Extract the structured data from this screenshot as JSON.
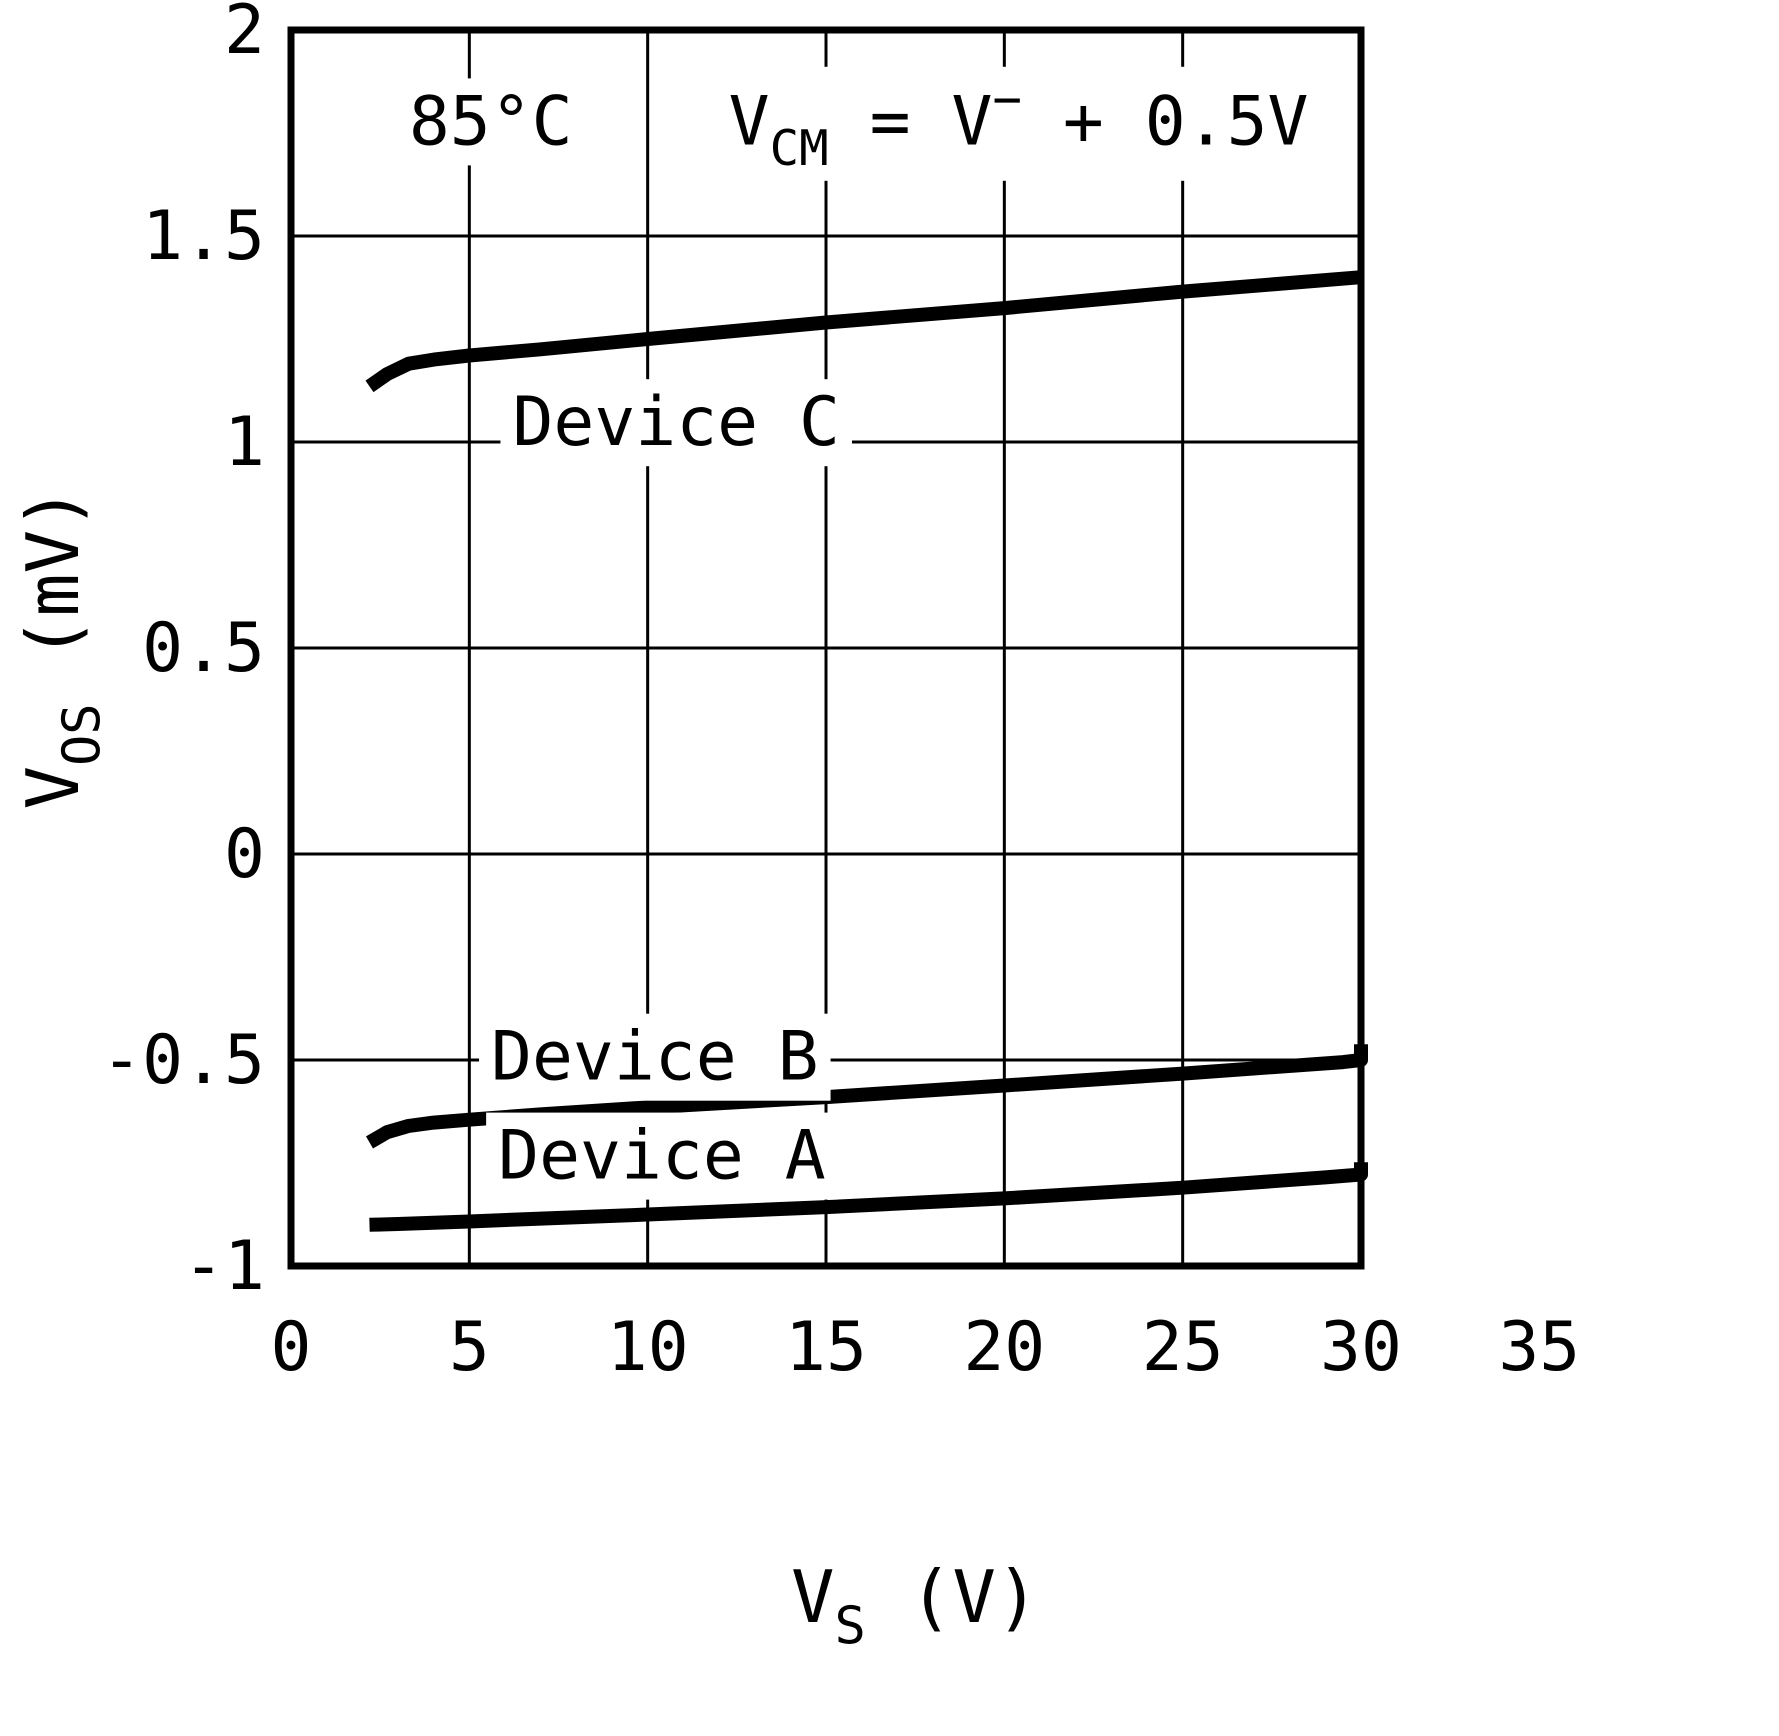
{
  "chart_data": {
    "type": "line",
    "title": "",
    "xlabel": "VS (V)",
    "ylabel": "VOS (mV)",
    "xlabel_parts": [
      {
        "t": "V"
      },
      {
        "t": "S",
        "style": "sub"
      },
      {
        "t": " (V)"
      }
    ],
    "ylabel_parts": [
      {
        "t": "V"
      },
      {
        "t": "OS",
        "style": "sub"
      },
      {
        "t": " (mV)"
      }
    ],
    "xlim": [
      0,
      30
    ],
    "ylim": [
      -1,
      2
    ],
    "x_tick_extension": 35,
    "grid": true,
    "legend_position": "inline-labels",
    "colors": {
      "line": "#000000",
      "background": "#ffffff"
    },
    "x_ticks": [
      {
        "v": 0,
        "label": "0"
      },
      {
        "v": 5,
        "label": "5"
      },
      {
        "v": 10,
        "label": "10"
      },
      {
        "v": 15,
        "label": "15"
      },
      {
        "v": 20,
        "label": "20"
      },
      {
        "v": 25,
        "label": "25"
      },
      {
        "v": 30,
        "label": "30"
      },
      {
        "v": 35,
        "label": "35"
      }
    ],
    "y_ticks": [
      {
        "v": 2,
        "label": "2"
      },
      {
        "v": 1.5,
        "label": "1.5"
      },
      {
        "v": 1,
        "label": "1"
      },
      {
        "v": 0.5,
        "label": "0.5"
      },
      {
        "v": 0,
        "label": "0"
      },
      {
        "v": -0.5,
        "label": "-0.5"
      },
      {
        "v": -1,
        "label": "-1"
      }
    ],
    "x_gridlines": [
      5,
      10,
      15,
      20,
      25
    ],
    "y_gridlines": [
      1.5,
      1,
      0.5,
      0,
      -0.5
    ],
    "annotations": [
      {
        "id": "temp-label",
        "text": "85°C",
        "parts": [
          {
            "t": "85°C"
          }
        ],
        "x": 5.6,
        "y": 1.78,
        "bg": true
      },
      {
        "id": "vcm-label",
        "text": "VCM = V− + 0.5V",
        "parts": [
          {
            "t": "V"
          },
          {
            "t": "CM",
            "style": "sub"
          },
          {
            "t": " = V"
          },
          {
            "t": "−",
            "style": "sup"
          },
          {
            "t": " + 0.5V"
          }
        ],
        "x": 20.4,
        "y": 1.78,
        "bg": true
      },
      {
        "id": "series-label-device-c",
        "text": "Device C",
        "parts": [
          {
            "t": "Device C"
          }
        ],
        "x": 10.8,
        "y": 1.05,
        "bg": true
      },
      {
        "id": "series-label-device-b",
        "text": "Device B",
        "parts": [
          {
            "t": "Device B"
          }
        ],
        "x": 10.2,
        "y": -0.49,
        "bg": true
      },
      {
        "id": "series-label-device-a",
        "text": "Device A",
        "parts": [
          {
            "t": "Device A"
          }
        ],
        "x": 10.4,
        "y": -0.73,
        "bg": true
      }
    ],
    "series": [
      {
        "name": "Device C",
        "points": [
          [
            2.2,
            1.135
          ],
          [
            2.7,
            1.165
          ],
          [
            3.3,
            1.19
          ],
          [
            4,
            1.2
          ],
          [
            5,
            1.21
          ],
          [
            7,
            1.225
          ],
          [
            10,
            1.25
          ],
          [
            15,
            1.29
          ],
          [
            20,
            1.325
          ],
          [
            25,
            1.365
          ],
          [
            30,
            1.4
          ]
        ]
      },
      {
        "name": "Device B",
        "points": [
          [
            2.2,
            -0.7
          ],
          [
            2.7,
            -0.675
          ],
          [
            3.3,
            -0.66
          ],
          [
            4,
            -0.652
          ],
          [
            5,
            -0.645
          ],
          [
            7,
            -0.632
          ],
          [
            10,
            -0.615
          ],
          [
            15,
            -0.59
          ],
          [
            20,
            -0.562
          ],
          [
            25,
            -0.533
          ],
          [
            29.5,
            -0.505
          ],
          [
            30,
            -0.5
          ],
          [
            30,
            -0.462
          ]
        ]
      },
      {
        "name": "Device A",
        "points": [
          [
            2.2,
            -0.9
          ],
          [
            3,
            -0.898
          ],
          [
            4,
            -0.895
          ],
          [
            5,
            -0.892
          ],
          [
            7,
            -0.885
          ],
          [
            10,
            -0.875
          ],
          [
            15,
            -0.857
          ],
          [
            20,
            -0.836
          ],
          [
            25,
            -0.81
          ],
          [
            29,
            -0.785
          ],
          [
            30,
            -0.778
          ],
          [
            30,
            -0.748
          ]
        ]
      }
    ]
  }
}
